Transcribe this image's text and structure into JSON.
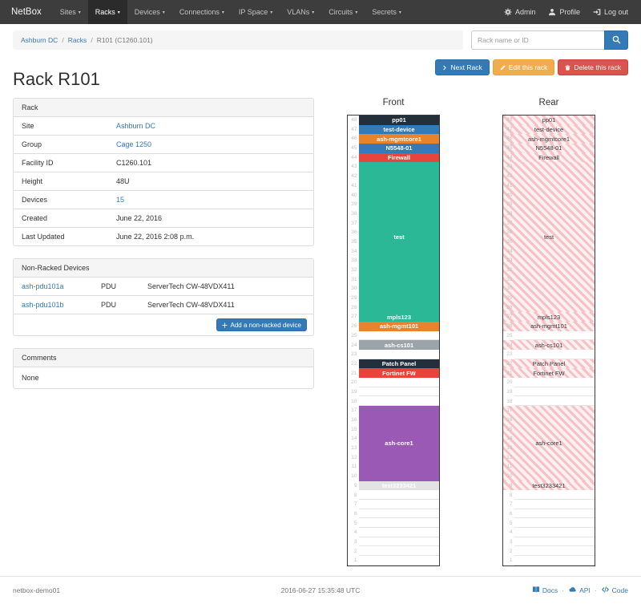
{
  "navbar": {
    "brand": "NetBox",
    "items": [
      {
        "label": "Sites",
        "active": false
      },
      {
        "label": "Racks",
        "active": true
      },
      {
        "label": "Devices",
        "active": false
      },
      {
        "label": "Connections",
        "active": false
      },
      {
        "label": "IP Space",
        "active": false
      },
      {
        "label": "VLANs",
        "active": false
      },
      {
        "label": "Circuits",
        "active": false
      },
      {
        "label": "Secrets",
        "active": false
      }
    ],
    "right_items": [
      {
        "icon": "gear-icon",
        "label": "Admin"
      },
      {
        "icon": "user-icon",
        "label": "Profile"
      },
      {
        "icon": "logout-icon",
        "label": "Log out"
      }
    ]
  },
  "breadcrumb": {
    "items": [
      {
        "label": "Ashburn DC",
        "link": true
      },
      {
        "label": "Racks",
        "link": true
      },
      {
        "label": "R101 (C1260.101)",
        "link": false
      }
    ]
  },
  "search": {
    "placeholder": "Rack name or ID"
  },
  "actions": {
    "next_label": "Next Rack",
    "edit_label": "Edit this rack",
    "delete_label": "Delete this rack"
  },
  "page": {
    "title": "Rack R101"
  },
  "rack_info": {
    "title": "Rack",
    "rows": [
      {
        "label": "Site",
        "value": "Ashburn DC",
        "link": true
      },
      {
        "label": "Group",
        "value": "Cage 1250",
        "link": true
      },
      {
        "label": "Facility ID",
        "value": "C1260.101",
        "link": false
      },
      {
        "label": "Height",
        "value": "48U",
        "link": false
      },
      {
        "label": "Devices",
        "value": "15",
        "link": true
      },
      {
        "label": "Created",
        "value": "June 22, 2016",
        "link": false
      },
      {
        "label": "Last Updated",
        "value": "June 22, 2016 2:08 p.m.",
        "link": false
      }
    ]
  },
  "non_racked": {
    "title": "Non-Racked Devices",
    "rows": [
      {
        "name": "ash-pdu101a",
        "role": "PDU",
        "type": "ServerTech CW-48VDX411"
      },
      {
        "name": "ash-pdu101b",
        "role": "PDU",
        "type": "ServerTech CW-48VDX411"
      }
    ],
    "add_label": "Add a non-racked device"
  },
  "comments": {
    "title": "Comments",
    "body": "None"
  },
  "elevations": {
    "front_title": "Front",
    "rear_title": "Rear",
    "units": 48,
    "slots": [
      {
        "u": 48,
        "h": 1,
        "label": "pp01",
        "color": "#232f3b"
      },
      {
        "u": 47,
        "h": 1,
        "label": "test-device",
        "color": "#337ab7"
      },
      {
        "u": 46,
        "h": 1,
        "label": "ash-mgmtcore1",
        "color": "#e8832c"
      },
      {
        "u": 45,
        "h": 1,
        "label": "N5548-01",
        "color": "#337ab7"
      },
      {
        "u": 44,
        "h": 1,
        "label": "Firewall",
        "color": "#e7453c"
      },
      {
        "u": 43,
        "h": 16,
        "label": "test",
        "color": "#2ab896"
      },
      {
        "u": 27,
        "h": 1,
        "label": "mpls123",
        "color": "#2ab896"
      },
      {
        "u": 26,
        "h": 1,
        "label": "ash-mgmt101",
        "color": "#e8832c"
      },
      {
        "u": 24,
        "h": 1,
        "label": "ash-cs101",
        "color": "#9ba4ab"
      },
      {
        "u": 22,
        "h": 1,
        "label": "Patch Panel",
        "color": "#232f3b"
      },
      {
        "u": 21,
        "h": 1,
        "label": "Fortinet FW",
        "color": "#e7453c"
      },
      {
        "u": 17,
        "h": 8,
        "label": "ash-core1",
        "color": "#9b59b6"
      },
      {
        "u": 9,
        "h": 1,
        "label": "test3233421",
        "color": "#e3e3e3",
        "label_color": "#ffffff"
      }
    ]
  },
  "footer": {
    "hostname": "netbox-demo01",
    "timestamp": "2016-06-27 15:35:48 UTC",
    "links": [
      {
        "icon": "book-icon",
        "label": "Docs"
      },
      {
        "icon": "cloud-icon",
        "label": "API"
      },
      {
        "icon": "code-icon",
        "label": "Code"
      }
    ]
  }
}
